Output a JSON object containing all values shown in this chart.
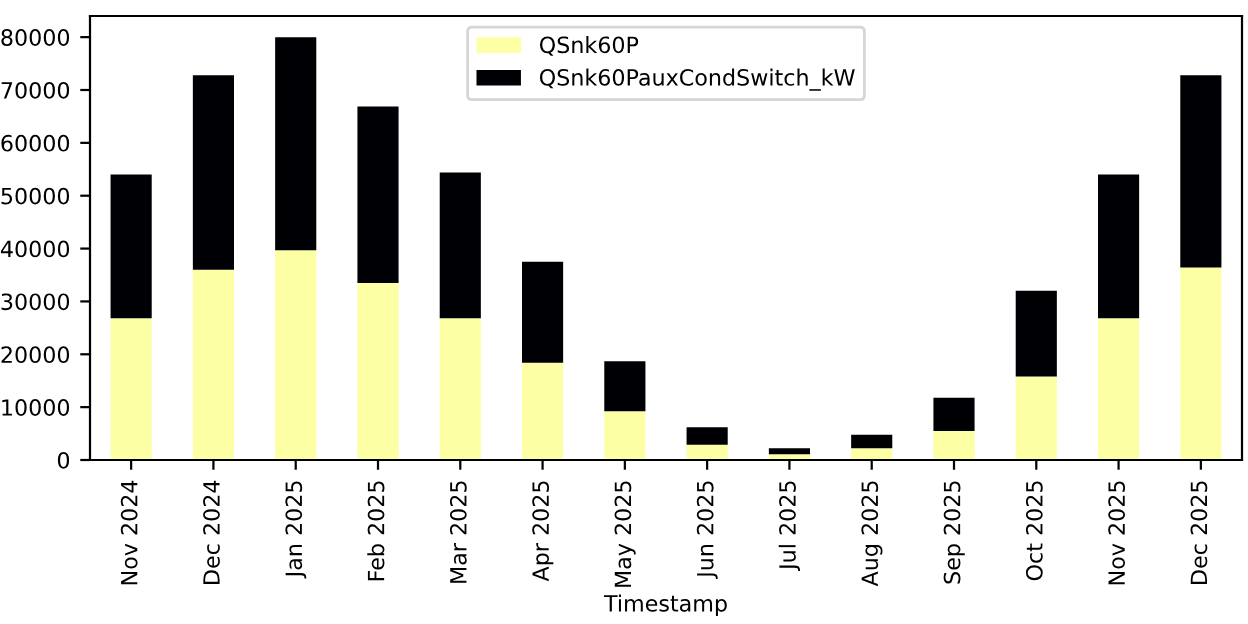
{
  "chart_data": {
    "type": "bar",
    "stacked": true,
    "xlabel": "Timestamp",
    "categories": [
      "Nov 2024",
      "Dec 2024",
      "Jan 2025",
      "Feb 2025",
      "Mar 2025",
      "Apr 2025",
      "May 2025",
      "Jun 2025",
      "Jul 2025",
      "Aug 2025",
      "Sep 2025",
      "Oct 2025",
      "Nov 2025",
      "Dec 2025"
    ],
    "series": [
      {
        "name": "QSnk60P",
        "color": "#fcffa4",
        "values": [
          26800,
          36000,
          39700,
          33500,
          26800,
          18400,
          9200,
          2900,
          1100,
          2200,
          5500,
          15800,
          26800,
          36400
        ]
      },
      {
        "name": "QSnk60PauxCondSwitch_kW",
        "color": "#000004",
        "values": [
          27200,
          36800,
          40300,
          33400,
          27600,
          19100,
          9500,
          3300,
          1100,
          2600,
          6300,
          16200,
          27200,
          36400
        ]
      }
    ],
    "ylim": [
      0,
      84000
    ],
    "yticks": [
      0,
      10000,
      20000,
      30000,
      40000,
      50000,
      60000,
      70000,
      80000
    ],
    "legend": "upper center",
    "grid": false
  }
}
